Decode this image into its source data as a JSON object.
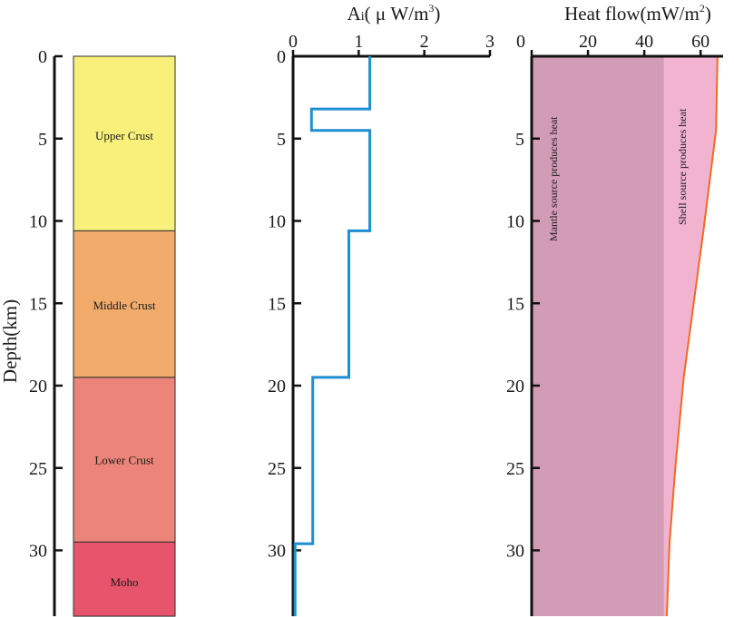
{
  "depth_axis": {
    "label": "Depth(km)",
    "ticks": [
      0,
      5,
      10,
      15,
      20,
      25,
      30
    ],
    "range": [
      0,
      34
    ]
  },
  "crust_column": {
    "layers": [
      {
        "name": "Upper Crust",
        "top": 0,
        "bottom": 10.6,
        "color": "#f9f07c"
      },
      {
        "name": "Middle Crust",
        "top": 10.6,
        "bottom": 19.5,
        "color": "#f2ab6a"
      },
      {
        "name": "Lower Crust",
        "top": 19.5,
        "bottom": 29.5,
        "color": "#ec8479"
      },
      {
        "name": "Moho",
        "top": 29.5,
        "bottom": 34,
        "color": "#e8546b"
      }
    ]
  },
  "chart_data": [
    {
      "type": "line",
      "title_main": "A",
      "title_sub": "i",
      "title_rest": "( μ W/m",
      "title_sup": "3",
      "title_close": ")",
      "x_ticks": [
        0,
        1,
        2,
        3
      ],
      "xlim": [
        0,
        3
      ],
      "ylim": [
        0,
        34
      ],
      "y_ticks": [
        0,
        5,
        10,
        15,
        20,
        25,
        30
      ],
      "line_color": "#1e8fd0",
      "series": [
        {
          "x": [
            1.17,
            1.17,
            0.28,
            0.28,
            1.17,
            1.17,
            0.85,
            0.85,
            0.3,
            0.3,
            0.3,
            0.3,
            0.3,
            0.03,
            0.03
          ],
          "y": [
            0,
            3.2,
            3.2,
            4.5,
            4.5,
            10.6,
            10.6,
            19.5,
            19.5,
            29.5,
            29.5,
            29.6,
            29.6,
            29.6,
            34
          ]
        }
      ]
    },
    {
      "type": "area",
      "title": "Heat flow(mW/m",
      "title_sup": "2",
      "title_close": ")",
      "x_ticks": [
        0,
        20,
        40,
        60
      ],
      "xlim": [
        0,
        68
      ],
      "ylim": [
        0,
        34
      ],
      "y_ticks": [
        5,
        10,
        15,
        20,
        25,
        30
      ],
      "series": [
        {
          "name": "Mantle source produces heat",
          "color": "#d29cb6",
          "x": [
            47,
            47
          ],
          "y": [
            0,
            34
          ]
        },
        {
          "name": "Shell source produces heat",
          "color": "#f2b3d1",
          "edge_color": "#f06a22",
          "x": [
            66,
            65.5,
            61,
            54,
            51,
            49,
            48
          ],
          "y": [
            0,
            4.5,
            10.6,
            19.5,
            25,
            29.5,
            34
          ]
        }
      ]
    }
  ]
}
